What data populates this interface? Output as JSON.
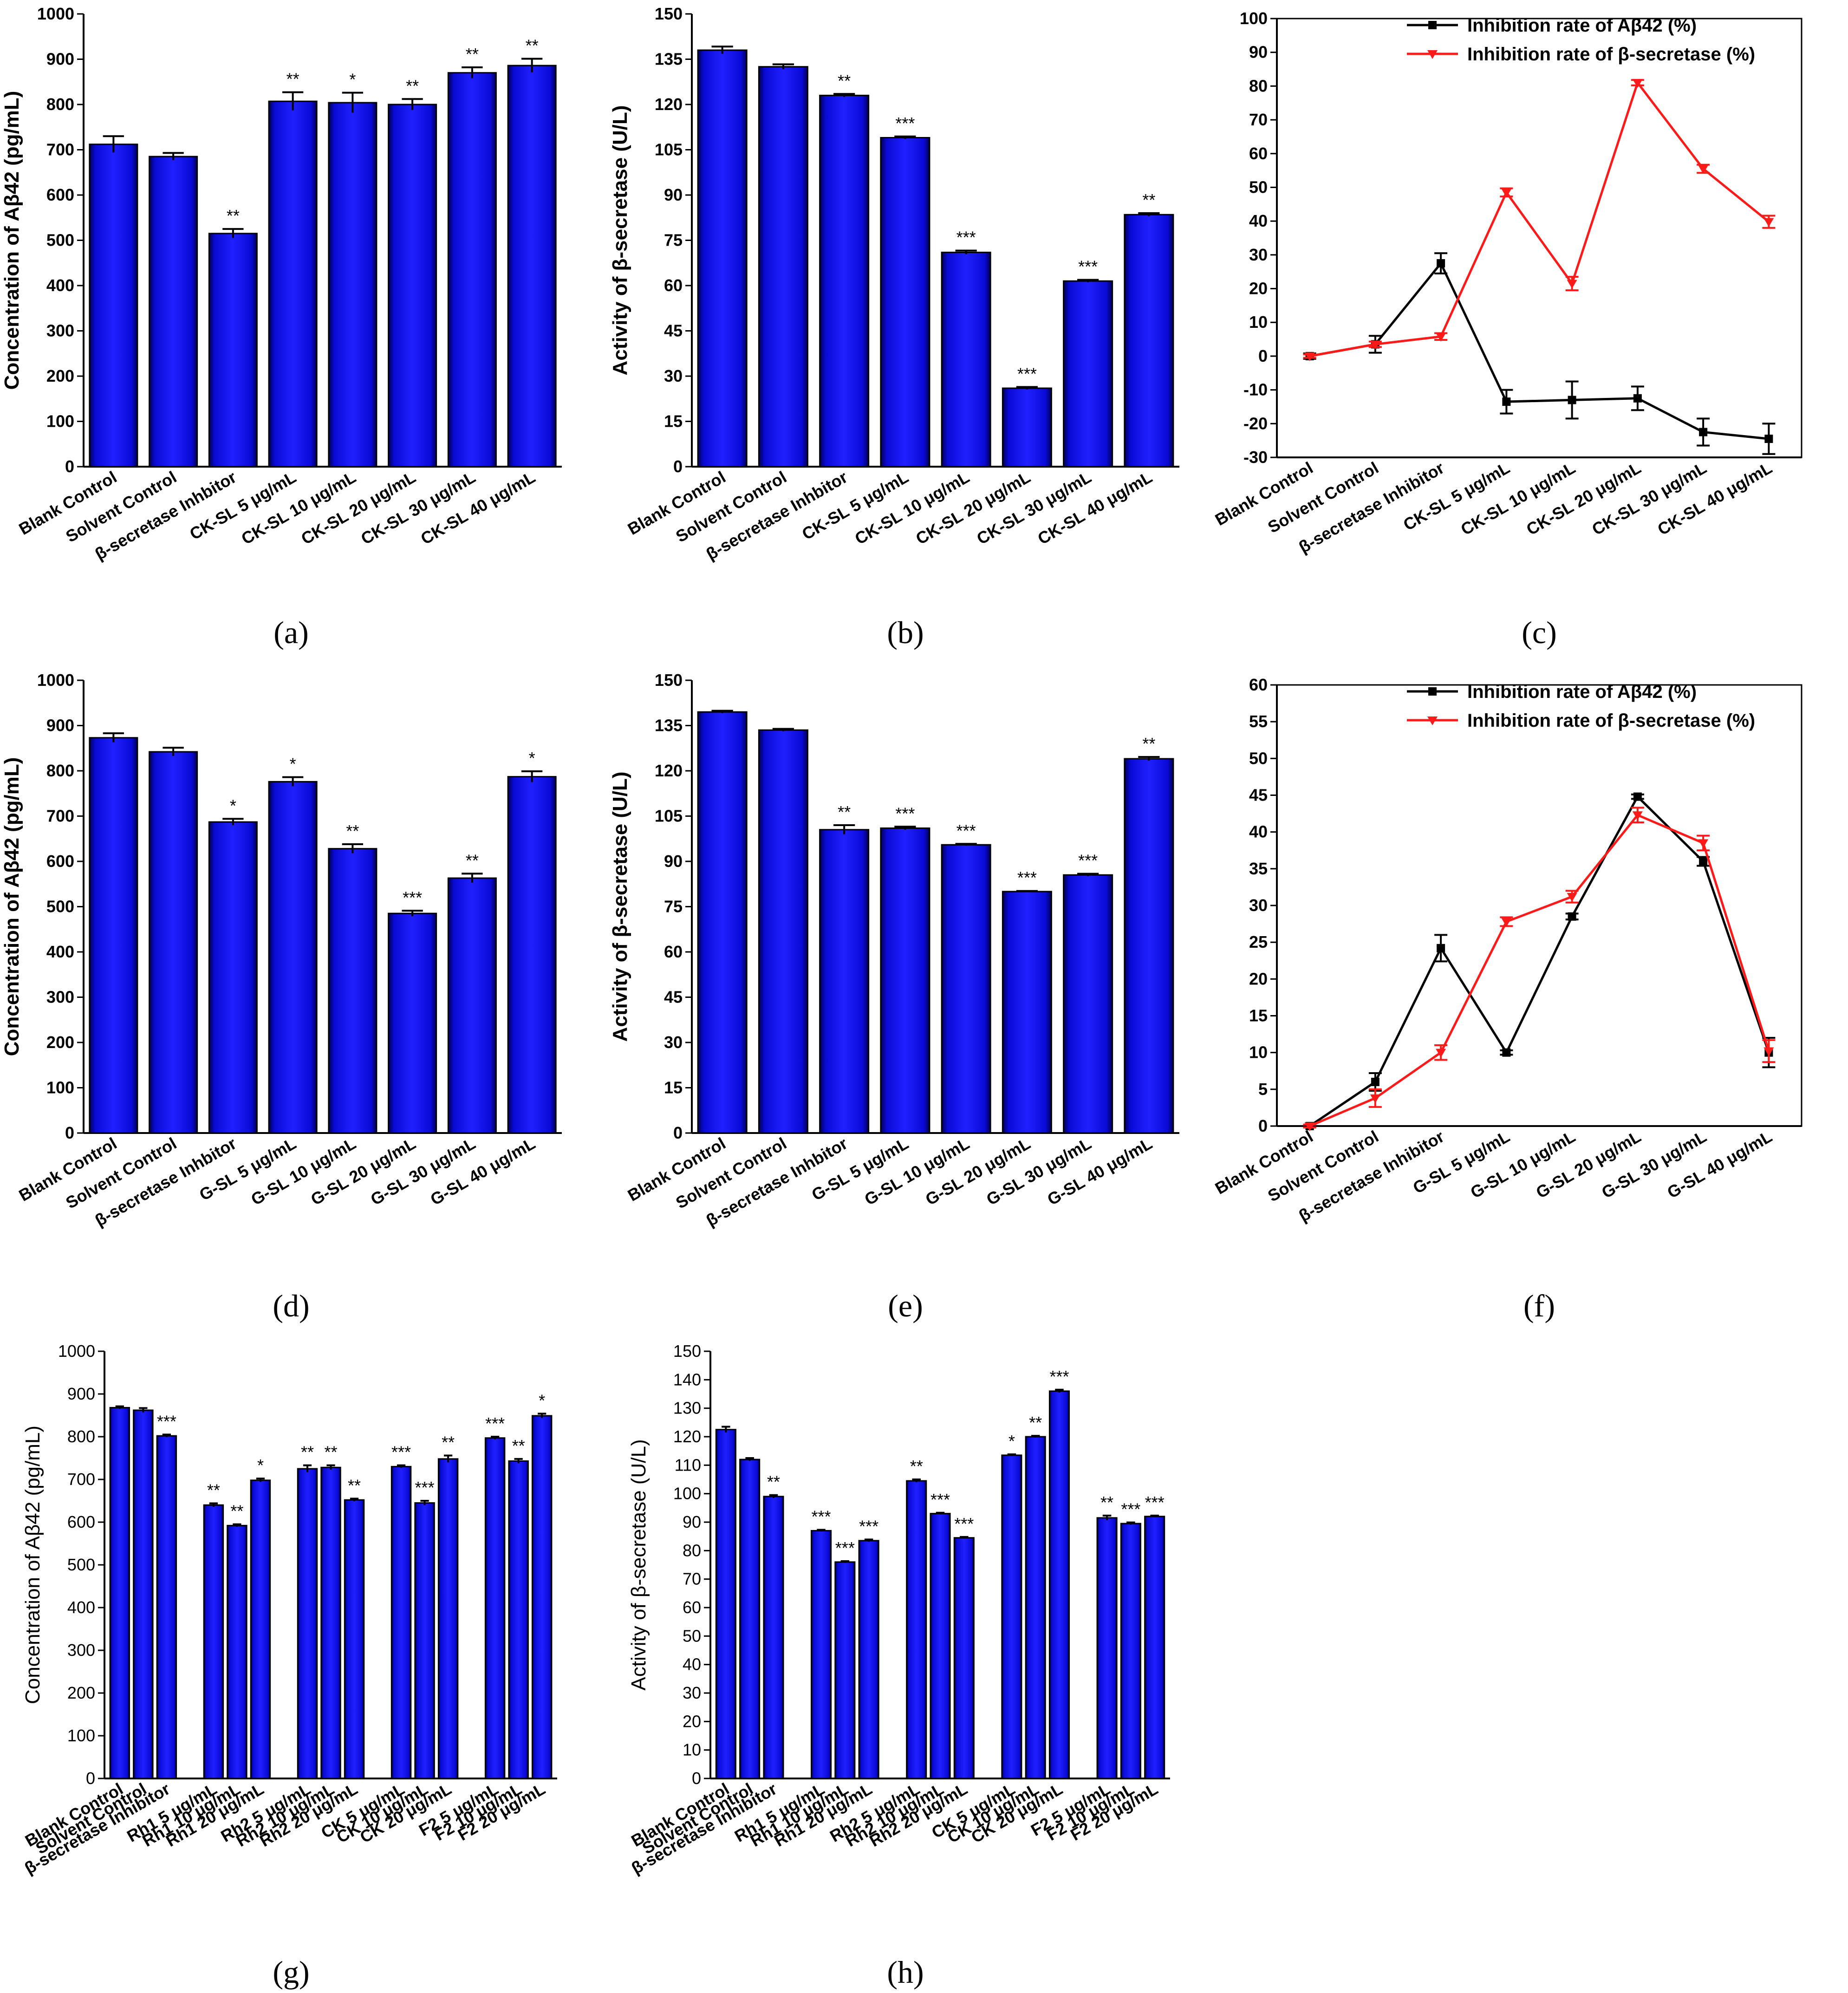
{
  "figure": {
    "panel_labels": [
      "(a)",
      "(b)",
      "(c)",
      "(d)",
      "(e)",
      "(f)",
      "(g)",
      "(h)"
    ]
  },
  "colors": {
    "bar": "#0a0ad6",
    "bar_edge": "#000000",
    "line1": "#000000",
    "line2": "#ff1a1a"
  },
  "chart_data": [
    {
      "id": "a",
      "type": "bar",
      "ylabel": "Concentration of Aβ42 (pg/mL)",
      "ylim": [
        0,
        1000
      ],
      "yticks": [
        0,
        100,
        200,
        300,
        400,
        500,
        600,
        700,
        800,
        900,
        1000
      ],
      "categories": [
        "Blank Control",
        "Solvent Control",
        "β-secretase Inhbitor",
        "CK-SL 5 μg/mL",
        "CK-SL 10 μg/mL",
        "CK-SL 20 μg/mL",
        "CK-SL 30 μg/mL",
        "CK-SL 40 μg/mL"
      ],
      "values": [
        712,
        685,
        515,
        807,
        804,
        800,
        870,
        886
      ],
      "errors": [
        18,
        8,
        10,
        20,
        22,
        12,
        12,
        15
      ],
      "significance": [
        "",
        "",
        "**",
        "**",
        "*",
        "**",
        "**",
        "**"
      ]
    },
    {
      "id": "b",
      "type": "bar",
      "ylabel": "Activity of β-secretase (U/L)",
      "ylim": [
        0,
        150
      ],
      "yticks": [
        0,
        15,
        30,
        45,
        60,
        75,
        90,
        105,
        120,
        135,
        150
      ],
      "categories": [
        "Blank Control",
        "Solvent Control",
        "β-secretase Inhbitor",
        "CK-SL 5 μg/mL",
        "CK-SL 10 μg/mL",
        "CK-SL 20 μg/mL",
        "CK-SL 30 μg/mL",
        "CK-SL 40 μg/mL"
      ],
      "values": [
        138,
        132.5,
        123,
        109,
        71,
        26,
        61.5,
        83.5
      ],
      "errors": [
        1.2,
        0.8,
        0.5,
        0.4,
        0.6,
        0.4,
        0.4,
        0.5
      ],
      "significance": [
        "",
        "",
        "**",
        "***",
        "***",
        "***",
        "***",
        "**"
      ]
    },
    {
      "id": "c",
      "type": "line",
      "ylim": [
        -30,
        100
      ],
      "yticks": [
        -30,
        -20,
        -10,
        0,
        10,
        20,
        30,
        40,
        50,
        60,
        70,
        80,
        90,
        100
      ],
      "categories": [
        "Blank Control",
        "Solvent Control",
        "β-secretase Inhibitor",
        "CK-SL 5 μg/mL",
        "CK-SL 10 μg/mL",
        "CK-SL 20 μg/mL",
        "CK-SL 30 μg/mL",
        "CK-SL 40 μg/mL"
      ],
      "legend": "top-right",
      "series": [
        {
          "name": "Inhibition rate of Aβ42 (%)",
          "values": [
            0,
            3.5,
            27.5,
            -13.5,
            -13,
            -12.5,
            -22.5,
            -24.5
          ],
          "errors": [
            0.8,
            2.5,
            3,
            3.5,
            5.5,
            3.5,
            4,
            4.5
          ]
        },
        {
          "name": "Inhibition rate of β-secretase  (%)",
          "values": [
            0,
            3.5,
            5.8,
            48.5,
            21.5,
            81,
            55.5,
            39.8
          ],
          "errors": [
            0.5,
            0.8,
            1,
            1.2,
            2,
            0.8,
            1.2,
            1.8
          ]
        }
      ]
    },
    {
      "id": "d",
      "type": "bar",
      "ylabel": "Concentration of Aβ42 (pg/mL)",
      "ylim": [
        0,
        1000
      ],
      "yticks": [
        0,
        100,
        200,
        300,
        400,
        500,
        600,
        700,
        800,
        900,
        1000
      ],
      "categories": [
        "Blank Control",
        "Solvent Control",
        "β-secretase Inhbitor",
        "G-SL 5 μg/mL",
        "G-SL 10 μg/mL",
        "G-SL 20 μg/mL",
        "G-SL 30 μg/mL",
        "G-SL 40 μg/mL"
      ],
      "values": [
        873,
        842,
        687,
        776,
        628,
        485,
        563,
        787
      ],
      "errors": [
        10,
        9,
        7,
        10,
        10,
        6,
        10,
        12
      ],
      "significance": [
        "",
        "",
        "*",
        "*",
        "**",
        "***",
        "**",
        "*"
      ]
    },
    {
      "id": "e",
      "type": "bar",
      "ylabel": "Activity of β-secretase (U/L)",
      "ylim": [
        0,
        150
      ],
      "yticks": [
        0,
        15,
        30,
        45,
        60,
        75,
        90,
        105,
        120,
        135,
        150
      ],
      "categories": [
        "Blank Control",
        "Solvent Control",
        "β-secretase Inhbitor",
        "G-SL 5 μg/mL",
        "G-SL 10 μg/mL",
        "G-SL 20 μg/mL",
        "G-SL 30 μg/mL",
        "G-SL 40 μg/mL"
      ],
      "values": [
        139.5,
        133.5,
        100.5,
        101,
        95.5,
        80,
        85.5,
        124
      ],
      "errors": [
        0.4,
        0.4,
        1.5,
        0.5,
        0.3,
        0.2,
        0.4,
        0.6
      ],
      "significance": [
        "",
        "",
        "**",
        "***",
        "***",
        "***",
        "***",
        "**"
      ]
    },
    {
      "id": "f",
      "type": "line",
      "ylim": [
        0,
        60
      ],
      "yticks": [
        0,
        5,
        10,
        15,
        20,
        25,
        30,
        35,
        40,
        45,
        50,
        55,
        60
      ],
      "categories": [
        "Blank Control",
        "Solvent Control",
        "β-secretase Inhibitor",
        "G-SL 5 μg/mL",
        "G-SL 10 μg/mL",
        "G-SL 20 μg/mL",
        "G-SL 30 μg/mL",
        "G-SL 40 μg/mL"
      ],
      "legend": "top-right",
      "series": [
        {
          "name": "Inhibition rate of Aβ42 (%)",
          "values": [
            0,
            6,
            24.2,
            10,
            28.5,
            44.8,
            36,
            10
          ],
          "errors": [
            0.2,
            1.2,
            1.8,
            0.3,
            0.4,
            0.3,
            0.6,
            2
          ]
        },
        {
          "name": "Inhibition rate of β-secretase (%)",
          "values": [
            0,
            3.8,
            10,
            27.8,
            31.2,
            42.3,
            38.5,
            10.2
          ],
          "errors": [
            0.2,
            1.2,
            1,
            0.6,
            0.8,
            1,
            1,
            1.5
          ]
        }
      ]
    },
    {
      "id": "g",
      "type": "bar",
      "ylabel": "Concentration of Aβ42 (pg/mL)",
      "ylim": [
        0,
        1000
      ],
      "yticks": [
        0,
        100,
        200,
        300,
        400,
        500,
        600,
        700,
        800,
        900,
        1000
      ],
      "categories": [
        "Blank Control",
        "Solvent Control",
        "β-secretase Inhibitor",
        "Rh1 5 μg/mL",
        "Rh1 10 μg/mL",
        "Rh1 20 μg/mL",
        "Rh2 5 μg/mL",
        "Rh2 10 μg/mL",
        "Rh2 20 μg/mL",
        "CK 5 μg/mL",
        "CK 10 μg/mL",
        "CK 20 μg/mL",
        "F2 5 μg/mL",
        "F2 10 μg/mL",
        "F2 20 μg/mL"
      ],
      "groups": [
        3,
        3,
        3,
        3,
        3
      ],
      "values": [
        868,
        862,
        802,
        640,
        592,
        698,
        725,
        728,
        652,
        730,
        645,
        748,
        797,
        743,
        849
      ],
      "errors": [
        3,
        5,
        3,
        4,
        3,
        4,
        8,
        5,
        3,
        3,
        5,
        8,
        3,
        5,
        5
      ],
      "significance": [
        "",
        "",
        "***",
        "**",
        "**",
        "*",
        "**",
        "**",
        "**",
        "***",
        "***",
        "**",
        "***",
        "**",
        "*"
      ]
    },
    {
      "id": "h",
      "type": "bar",
      "ylabel": "Activity of β-secretase (U/L)",
      "ylim": [
        0,
        150
      ],
      "yticks": [
        0,
        10,
        20,
        30,
        40,
        50,
        60,
        70,
        80,
        90,
        100,
        110,
        120,
        130,
        140,
        150
      ],
      "categories": [
        "Blank Control",
        "Solvent Control",
        "β-secretase Inhibitor",
        "Rh1 5 μg/mL",
        "Rh1 10 μg/mL",
        "Rh1 20 μg/mL",
        "Rh2 5 μg/mL",
        "Rh2 10 μg/mL",
        "Rh2 20 μg/mL",
        "CK 5 μg/mL",
        "CK 10 μg/mL",
        "CK 20 μg/mL",
        "F2 5 μg/mL",
        "F2 10 μg/mL",
        "F2 20 μg/mL"
      ],
      "groups": [
        3,
        3,
        3,
        3,
        3
      ],
      "values": [
        122.5,
        112,
        99,
        87,
        76,
        83.5,
        104.5,
        93,
        84.5,
        113.5,
        120,
        136,
        91.5,
        89.5,
        92
      ],
      "errors": [
        1,
        0.5,
        0.5,
        0.3,
        0.3,
        0.4,
        0.5,
        0.3,
        0.3,
        0.3,
        0.3,
        0.5,
        0.8,
        0.4,
        0.3
      ],
      "significance": [
        "",
        "",
        "**",
        "***",
        "***",
        "***",
        "**",
        "***",
        "***",
        "*",
        "**",
        "***",
        "**",
        "***",
        "***"
      ]
    }
  ]
}
